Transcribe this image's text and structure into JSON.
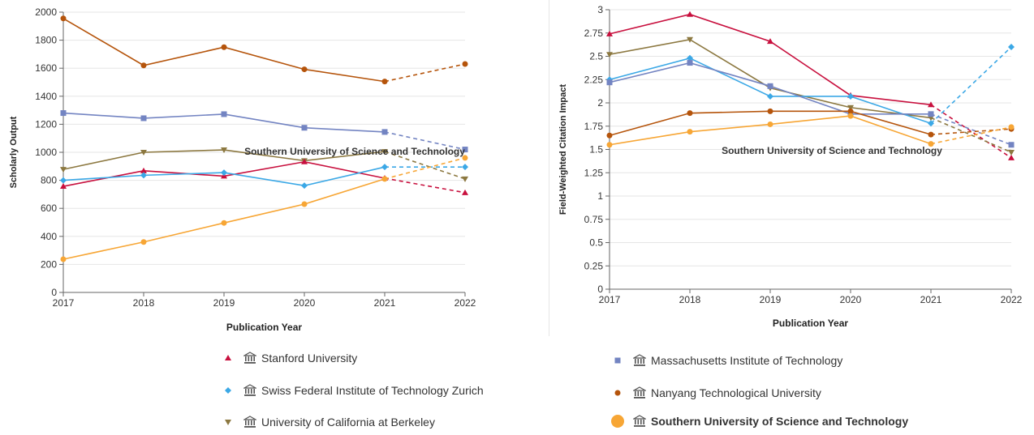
{
  "chart_data": [
    {
      "type": "line",
      "ylabel": "Scholarly Output",
      "xlabel": "Publication Year",
      "annotation": "Southern University of Science and Technology",
      "categories": [
        "2017",
        "2018",
        "2019",
        "2020",
        "2021",
        "2022"
      ],
      "ylim": [
        0,
        2000
      ],
      "yticks": [
        "0",
        "200",
        "400",
        "600",
        "800",
        "1000",
        "1200",
        "1400",
        "1600",
        "1800",
        "2000"
      ],
      "series": [
        {
          "name": "Nanyang Technological University",
          "color": "#b5540b",
          "marker": "circle",
          "values": [
            1955,
            1620,
            1750,
            1592,
            1505,
            1630
          ]
        },
        {
          "name": "Massachusetts Institute of Technology",
          "color": "#7384c2",
          "marker": "square",
          "values": [
            1280,
            1243,
            1272,
            1175,
            1145,
            1020
          ]
        },
        {
          "name": "University of California at Berkeley",
          "color": "#8c7840",
          "marker": "triangle-down",
          "values": [
            878,
            1000,
            1017,
            940,
            1005,
            810
          ]
        },
        {
          "name": "Stanford University",
          "color": "#c8103e",
          "marker": "triangle-up",
          "values": [
            757,
            868,
            830,
            932,
            815,
            712
          ]
        },
        {
          "name": "Swiss Federal Institute of Technology Zurich",
          "color": "#3ba8e6",
          "marker": "diamond",
          "values": [
            800,
            836,
            855,
            762,
            895,
            895
          ]
        },
        {
          "name": "Southern University of Science and Technology",
          "color": "#f7a635",
          "marker": "circle",
          "values": [
            237,
            360,
            496,
            630,
            810,
            960
          ]
        }
      ]
    },
    {
      "type": "line",
      "ylabel": "Field-Weighted Citation Impact",
      "xlabel": "Publication Year",
      "annotation": "Southern University of Science and Technology",
      "categories": [
        "2017",
        "2018",
        "2019",
        "2020",
        "2021",
        "2022"
      ],
      "ylim": [
        0,
        3
      ],
      "yticks": [
        "0",
        "0.25",
        "0.5",
        "0.75",
        "1",
        "1.25",
        "1.5",
        "1.75",
        "2",
        "2.25",
        "2.5",
        "2.75",
        "3"
      ],
      "series": [
        {
          "name": "Stanford University",
          "color": "#c8103e",
          "marker": "triangle-up",
          "values": [
            2.74,
            2.95,
            2.66,
            2.08,
            1.98,
            1.41
          ]
        },
        {
          "name": "University of California at Berkeley",
          "color": "#8c7840",
          "marker": "triangle-down",
          "values": [
            2.52,
            2.68,
            2.16,
            1.95,
            1.84,
            1.47
          ]
        },
        {
          "name": "Swiss Federal Institute of Technology Zurich",
          "color": "#3ba8e6",
          "marker": "diamond",
          "values": [
            2.25,
            2.48,
            2.07,
            2.07,
            1.78,
            2.6
          ]
        },
        {
          "name": "Massachusetts Institute of Technology",
          "color": "#7384c2",
          "marker": "square",
          "values": [
            2.22,
            2.43,
            2.18,
            1.88,
            1.88,
            1.55
          ]
        },
        {
          "name": "Nanyang Technological University",
          "color": "#b5540b",
          "marker": "circle",
          "values": [
            1.65,
            1.89,
            1.91,
            1.91,
            1.66,
            1.72
          ]
        },
        {
          "name": "Southern University of Science and Technology",
          "color": "#f7a635",
          "marker": "circle",
          "values": [
            1.55,
            1.69,
            1.77,
            1.86,
            1.56,
            1.74
          ]
        }
      ]
    }
  ],
  "legend": {
    "items": [
      {
        "label": "Stanford University",
        "marker": "triangle-up",
        "color": "#c8103e"
      },
      {
        "label": "Swiss Federal Institute of Technology Zurich",
        "marker": "diamond",
        "color": "#3ba8e6"
      },
      {
        "label": "University of California at Berkeley",
        "marker": "triangle-down",
        "color": "#8c7840"
      },
      {
        "label": "Massachusetts Institute of Technology",
        "marker": "square",
        "color": "#7384c2"
      },
      {
        "label": "Nanyang Technological University",
        "marker": "circle",
        "color": "#b5540b"
      },
      {
        "label": "Southern University of Science and Technology",
        "marker": "circle-large",
        "color": "#f7a635"
      }
    ]
  }
}
